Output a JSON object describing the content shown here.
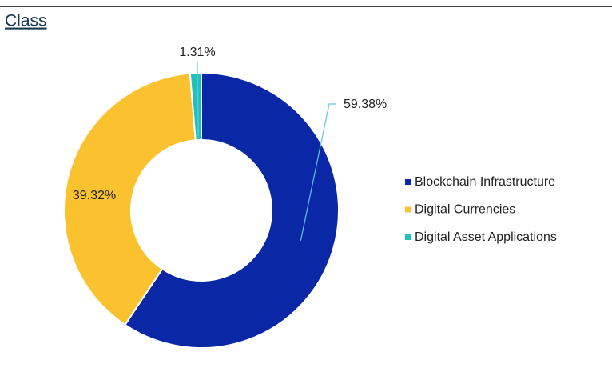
{
  "chart_data": {
    "type": "pie",
    "donut": true,
    "title": "Class",
    "categories": [
      "Blockchain Infrastructure",
      "Digital Currencies",
      "Digital Asset Applications"
    ],
    "values": [
      59.38,
      39.32,
      1.31
    ],
    "value_labels": [
      "59.38%",
      "39.32%",
      "1.31%"
    ],
    "colors": [
      "#0a27a6",
      "#fbc22f",
      "#1fc1ba"
    ],
    "legend": "right"
  }
}
